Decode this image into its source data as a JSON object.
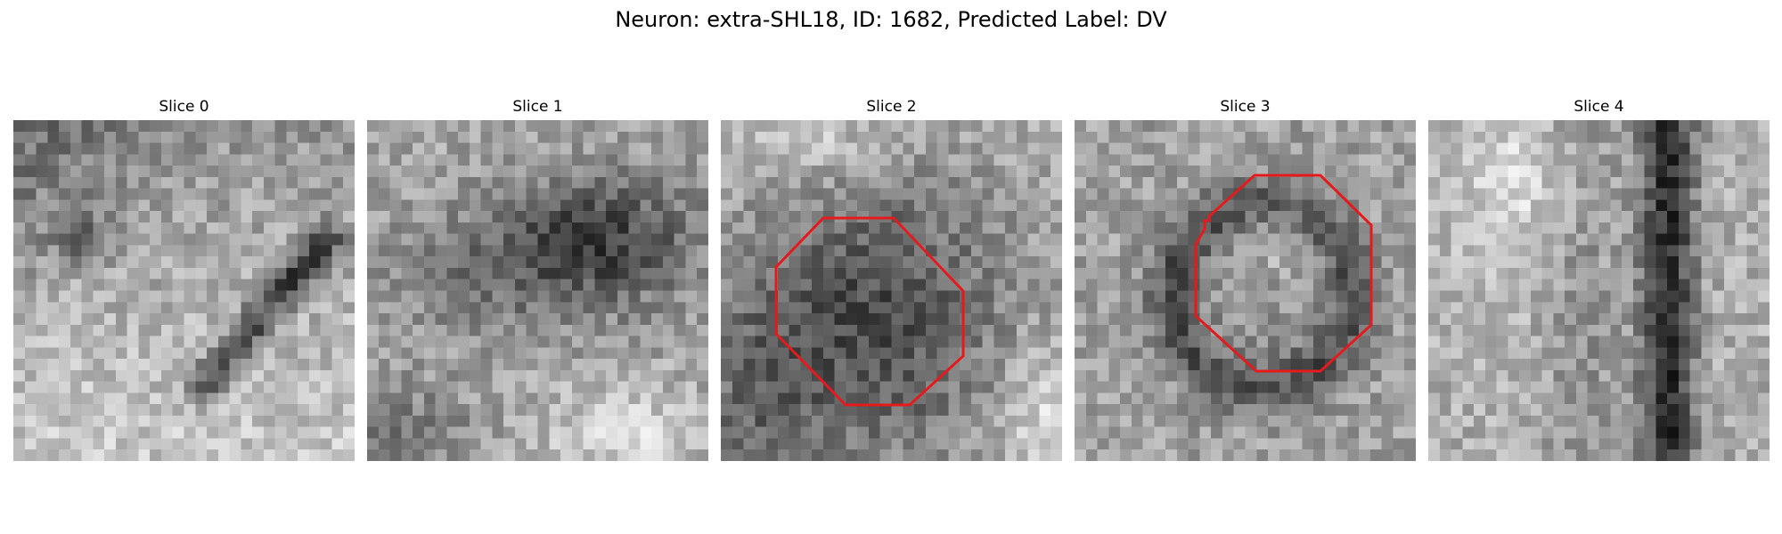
{
  "figure": {
    "title": "Neuron: extra-SHL18, ID: 1682, Predicted Label: DV",
    "colormap": "gray",
    "roi_color": "#e41a1c",
    "slices": [
      {
        "title": "Slice 0",
        "has_roi": false
      },
      {
        "title": "Slice 1",
        "has_roi": false
      },
      {
        "title": "Slice 2",
        "has_roi": true
      },
      {
        "title": "Slice 3",
        "has_roi": true
      },
      {
        "title": "Slice 4",
        "has_roi": false
      }
    ]
  }
}
